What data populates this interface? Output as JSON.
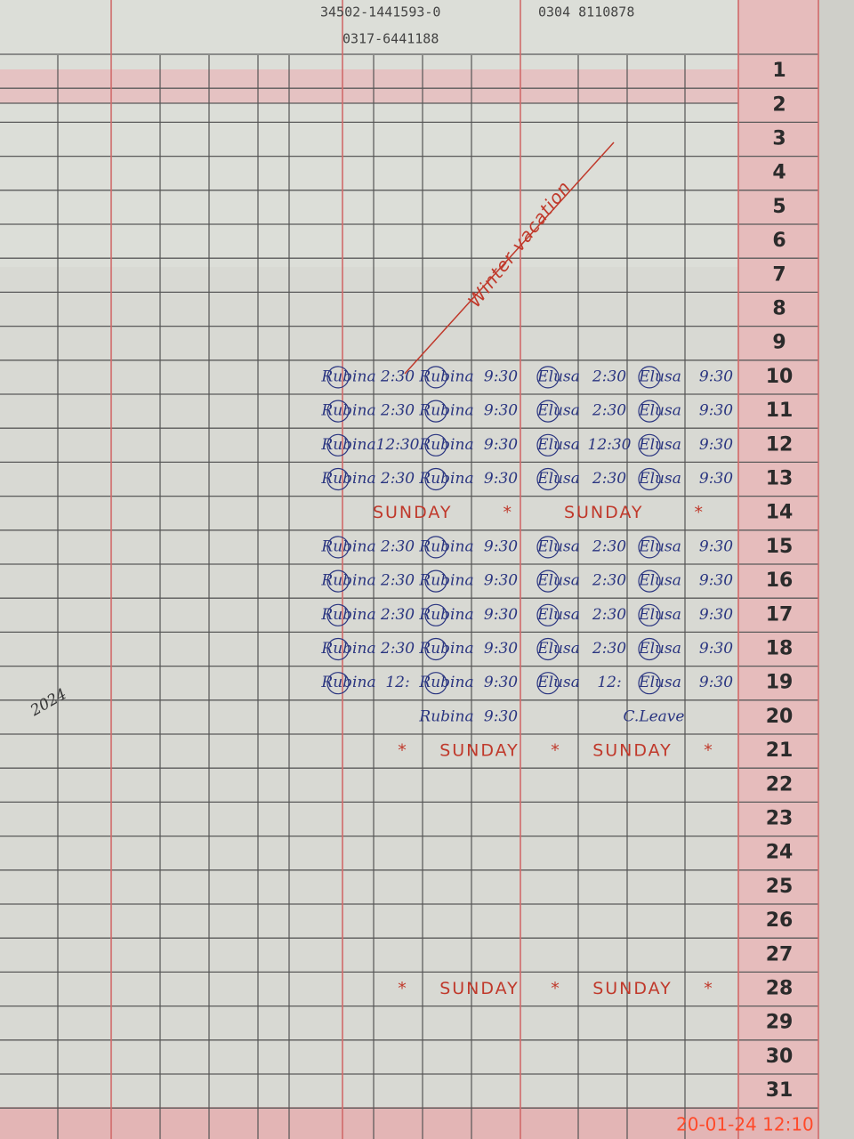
{
  "header": {
    "notes": [
      "34502-1441593-0",
      "0317-6441188",
      "0304 8110878"
    ]
  },
  "annotation": "Winter vacation",
  "signature": "2024",
  "timestamp": "20-01-24 12:10",
  "rows": [
    {
      "day": "1"
    },
    {
      "day": "2"
    },
    {
      "day": "3"
    },
    {
      "day": "4"
    },
    {
      "day": "5"
    },
    {
      "day": "6"
    },
    {
      "day": "7"
    },
    {
      "day": "8"
    },
    {
      "day": "9"
    },
    {
      "day": "10",
      "cells": [
        "Rubina",
        "2:30",
        "Rubina",
        "9:30",
        "Elusa",
        "2:30",
        "Elusa",
        "9:30"
      ]
    },
    {
      "day": "11",
      "cells": [
        "Rubina",
        "2:30",
        "Rubina",
        "9:30",
        "Elusa",
        "2:30",
        "Elusa",
        "9:30"
      ]
    },
    {
      "day": "12",
      "cells": [
        "Rubina",
        "12:30",
        "Rubina",
        "9:30",
        "Elusa",
        "12:30",
        "Elusa",
        "9:30"
      ]
    },
    {
      "day": "13",
      "cells": [
        "Rubina",
        "2:30",
        "Rubina",
        "9:30",
        "Elusa",
        "2:30",
        "Elusa",
        "9:30"
      ]
    },
    {
      "day": "14",
      "sunday": [
        "SUNDAY",
        "*",
        "SUNDAY",
        "*"
      ]
    },
    {
      "day": "15",
      "cells": [
        "Rubina",
        "2:30",
        "Rubina",
        "9:30",
        "Elusa",
        "2:30",
        "Elusa",
        "9:30"
      ]
    },
    {
      "day": "16",
      "cells": [
        "Rubina",
        "2:30",
        "Rubina",
        "9:30",
        "Elusa",
        "2:30",
        "Elusa",
        "9:30"
      ]
    },
    {
      "day": "17",
      "cells": [
        "Rubina",
        "2:30",
        "Rubina",
        "9:30",
        "Elusa",
        "2:30",
        "Elusa",
        "9:30"
      ]
    },
    {
      "day": "18",
      "cells": [
        "Rubina",
        "2:30",
        "Rubina",
        "9:30",
        "Elusa",
        "2:30",
        "Elusa",
        "9:30"
      ]
    },
    {
      "day": "19",
      "cells": [
        "Rubina",
        "12:",
        "Rubina",
        "9:30",
        "Elusa",
        "12:",
        "Elusa",
        "9:30"
      ]
    },
    {
      "day": "20",
      "partial": [
        "Rubina",
        "9:30",
        "C.Leave"
      ]
    },
    {
      "day": "21",
      "sunday": [
        "*",
        "SUNDAY",
        "*",
        "SUNDAY",
        "*"
      ]
    },
    {
      "day": "22"
    },
    {
      "day": "23"
    },
    {
      "day": "24"
    },
    {
      "day": "25"
    },
    {
      "day": "26"
    },
    {
      "day": "27"
    },
    {
      "day": "28",
      "sunday": [
        "*",
        "SUNDAY",
        "*",
        "SUNDAY",
        "*"
      ]
    },
    {
      "day": "29"
    },
    {
      "day": "30"
    },
    {
      "day": "31"
    }
  ]
}
